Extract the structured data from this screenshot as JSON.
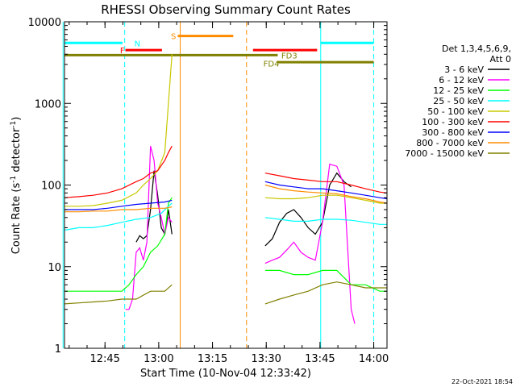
{
  "chart_data": {
    "type": "line",
    "title": "RHESSI Observing Summary Count Rates",
    "xlabel": "Start Time (10-Nov-04 12:33:42)",
    "ylabel_main": "Count Rate (s",
    "ylabel_sup1": "-1",
    "ylabel_mid": " detector",
    "ylabel_sup2": "-1",
    "ylabel_end": ")",
    "ylog": true,
    "ylim": [
      1,
      10000
    ],
    "xlim_minutes": [
      0,
      90
    ],
    "x_ticks": [
      {
        "label": "12:45",
        "min": 11.3
      },
      {
        "label": "13:00",
        "min": 26.3
      },
      {
        "label": "13:15",
        "min": 41.3
      },
      {
        "label": "13:30",
        "min": 56.3
      },
      {
        "label": "13:45",
        "min": 71.3
      },
      {
        "label": "14:00",
        "min": 86.3
      }
    ],
    "y_ticks": [
      {
        "label": "1",
        "value": 1
      },
      {
        "label": "10",
        "value": 10
      },
      {
        "label": "100",
        "value": 100
      },
      {
        "label": "1000",
        "value": 1000
      },
      {
        "label": "10000",
        "value": 10000
      }
    ],
    "legend_header": [
      "Det 1,3,4,5,6,9,",
      "Att 0"
    ],
    "series": [
      {
        "name": "3 - 6 keV",
        "color": "#000000",
        "seg1": [
          [
            20,
            20
          ],
          [
            21,
            24
          ],
          [
            22,
            22
          ],
          [
            23,
            24
          ],
          [
            24,
            50
          ],
          [
            25,
            150
          ],
          [
            26,
            75
          ],
          [
            27,
            30
          ],
          [
            28,
            25
          ],
          [
            29,
            50
          ],
          [
            30,
            25
          ]
        ],
        "seg2": [
          [
            56,
            18
          ],
          [
            58,
            22
          ],
          [
            60,
            35
          ],
          [
            62,
            45
          ],
          [
            64,
            50
          ],
          [
            66,
            40
          ],
          [
            68,
            30
          ],
          [
            70,
            25
          ],
          [
            72,
            35
          ],
          [
            74,
            100
          ],
          [
            76,
            140
          ],
          [
            78,
            110
          ],
          [
            80,
            95
          ]
        ]
      },
      {
        "name": "6 - 12 keV",
        "color": "#ff00ff",
        "seg1": [
          [
            17,
            3
          ],
          [
            18,
            3
          ],
          [
            19,
            4
          ],
          [
            20,
            15
          ],
          [
            21,
            17
          ],
          [
            22,
            12
          ],
          [
            23,
            20
          ],
          [
            24,
            300
          ],
          [
            25,
            200
          ],
          [
            26,
            60
          ],
          [
            27,
            40
          ],
          [
            28,
            25
          ],
          [
            29,
            40
          ],
          [
            30,
            35
          ]
        ],
        "seg2": [
          [
            56,
            11
          ],
          [
            58,
            12
          ],
          [
            60,
            13
          ],
          [
            62,
            16
          ],
          [
            64,
            20
          ],
          [
            66,
            15
          ],
          [
            68,
            13
          ],
          [
            70,
            12
          ],
          [
            72,
            35
          ],
          [
            74,
            180
          ],
          [
            76,
            170
          ],
          [
            78,
            100
          ],
          [
            80,
            3
          ],
          [
            81,
            2
          ]
        ]
      },
      {
        "name": "12 - 25 keV",
        "color": "#00ff00",
        "seg1": [
          [
            0,
            5
          ],
          [
            4,
            5
          ],
          [
            8,
            5
          ],
          [
            12,
            5
          ],
          [
            16,
            5
          ],
          [
            18,
            6
          ],
          [
            20,
            8
          ],
          [
            22,
            10
          ],
          [
            24,
            15
          ],
          [
            26,
            18
          ],
          [
            28,
            25
          ],
          [
            29,
            60
          ],
          [
            30,
            70
          ]
        ],
        "seg2": [
          [
            56,
            9
          ],
          [
            60,
            9
          ],
          [
            64,
            8
          ],
          [
            68,
            8
          ],
          [
            72,
            9
          ],
          [
            76,
            9
          ],
          [
            80,
            6
          ],
          [
            84,
            6
          ],
          [
            88,
            5
          ],
          [
            90,
            5
          ]
        ]
      },
      {
        "name": "25 - 50 keV",
        "color": "#00ffff",
        "seg1": [
          [
            0,
            28
          ],
          [
            4,
            30
          ],
          [
            8,
            30
          ],
          [
            12,
            32
          ],
          [
            16,
            35
          ],
          [
            20,
            38
          ],
          [
            24,
            40
          ],
          [
            27,
            45
          ],
          [
            29,
            55
          ],
          [
            30,
            60
          ]
        ],
        "seg2": [
          [
            56,
            40
          ],
          [
            60,
            38
          ],
          [
            64,
            36
          ],
          [
            68,
            36
          ],
          [
            72,
            38
          ],
          [
            76,
            38
          ],
          [
            80,
            37
          ],
          [
            84,
            35
          ],
          [
            88,
            33
          ],
          [
            90,
            33
          ]
        ]
      },
      {
        "name": "50 - 100 keV",
        "color": "#c8c800",
        "seg1": [
          [
            0,
            55
          ],
          [
            4,
            55
          ],
          [
            8,
            56
          ],
          [
            12,
            60
          ],
          [
            16,
            65
          ],
          [
            20,
            80
          ],
          [
            22,
            100
          ],
          [
            24,
            120
          ],
          [
            26,
            150
          ],
          [
            28,
            250
          ],
          [
            29,
            1000
          ],
          [
            30,
            4000
          ]
        ],
        "seg2": [
          [
            56,
            70
          ],
          [
            60,
            68
          ],
          [
            64,
            68
          ],
          [
            68,
            70
          ],
          [
            72,
            75
          ],
          [
            76,
            75
          ],
          [
            80,
            70
          ],
          [
            84,
            65
          ],
          [
            88,
            60
          ],
          [
            90,
            60
          ]
        ]
      },
      {
        "name": "100 - 300 keV",
        "color": "#ff0000",
        "seg1": [
          [
            0,
            70
          ],
          [
            4,
            72
          ],
          [
            8,
            75
          ],
          [
            12,
            80
          ],
          [
            16,
            90
          ],
          [
            20,
            110
          ],
          [
            22,
            120
          ],
          [
            24,
            140
          ],
          [
            26,
            150
          ],
          [
            28,
            200
          ],
          [
            29,
            250
          ],
          [
            30,
            300
          ]
        ],
        "seg2": [
          [
            56,
            140
          ],
          [
            60,
            130
          ],
          [
            64,
            120
          ],
          [
            68,
            115
          ],
          [
            72,
            110
          ],
          [
            76,
            110
          ],
          [
            80,
            100
          ],
          [
            84,
            90
          ],
          [
            88,
            82
          ],
          [
            90,
            80
          ]
        ]
      },
      {
        "name": "300 - 800 keV",
        "color": "#0000ff",
        "seg1": [
          [
            0,
            50
          ],
          [
            4,
            50
          ],
          [
            8,
            50
          ],
          [
            12,
            52
          ],
          [
            16,
            55
          ],
          [
            20,
            58
          ],
          [
            24,
            60
          ],
          [
            28,
            62
          ],
          [
            30,
            65
          ]
        ],
        "seg2": [
          [
            56,
            110
          ],
          [
            60,
            100
          ],
          [
            64,
            95
          ],
          [
            68,
            90
          ],
          [
            72,
            90
          ],
          [
            76,
            85
          ],
          [
            80,
            80
          ],
          [
            84,
            75
          ],
          [
            88,
            70
          ],
          [
            90,
            68
          ]
        ]
      },
      {
        "name": "800 - 7000 keV",
        "color": "#ff8c00",
        "seg1": [
          [
            0,
            47
          ],
          [
            4,
            47
          ],
          [
            8,
            48
          ],
          [
            12,
            48
          ],
          [
            16,
            50
          ],
          [
            20,
            50
          ],
          [
            24,
            52
          ],
          [
            28,
            52
          ],
          [
            30,
            54
          ]
        ],
        "seg2": [
          [
            56,
            100
          ],
          [
            60,
            90
          ],
          [
            64,
            85
          ],
          [
            68,
            82
          ],
          [
            72,
            80
          ],
          [
            76,
            78
          ],
          [
            80,
            72
          ],
          [
            84,
            68
          ],
          [
            88,
            62
          ],
          [
            90,
            60
          ]
        ]
      },
      {
        "name": "7000 - 15000 keV",
        "color": "#808000",
        "seg1": [
          [
            0,
            3.5
          ],
          [
            4,
            3.6
          ],
          [
            8,
            3.7
          ],
          [
            12,
            3.8
          ],
          [
            16,
            4
          ],
          [
            20,
            4
          ],
          [
            24,
            5
          ],
          [
            28,
            5
          ],
          [
            30,
            6
          ]
        ],
        "seg2": [
          [
            56,
            3.5
          ],
          [
            60,
            4
          ],
          [
            64,
            4.5
          ],
          [
            68,
            5
          ],
          [
            72,
            6
          ],
          [
            76,
            6.5
          ],
          [
            80,
            6
          ],
          [
            84,
            5.5
          ],
          [
            88,
            5.5
          ],
          [
            90,
            5.5
          ]
        ]
      }
    ],
    "annotations": [
      {
        "label": "N",
        "color": "#00ffff"
      },
      {
        "label": "F",
        "color": "#ff0000"
      },
      {
        "label": "S",
        "color": "#ff8c00"
      },
      {
        "label": "FD3",
        "color": "#808000"
      },
      {
        "label": "FD4",
        "color": "#808000"
      }
    ],
    "footer_date": "22-Oct-2021 18:54"
  }
}
